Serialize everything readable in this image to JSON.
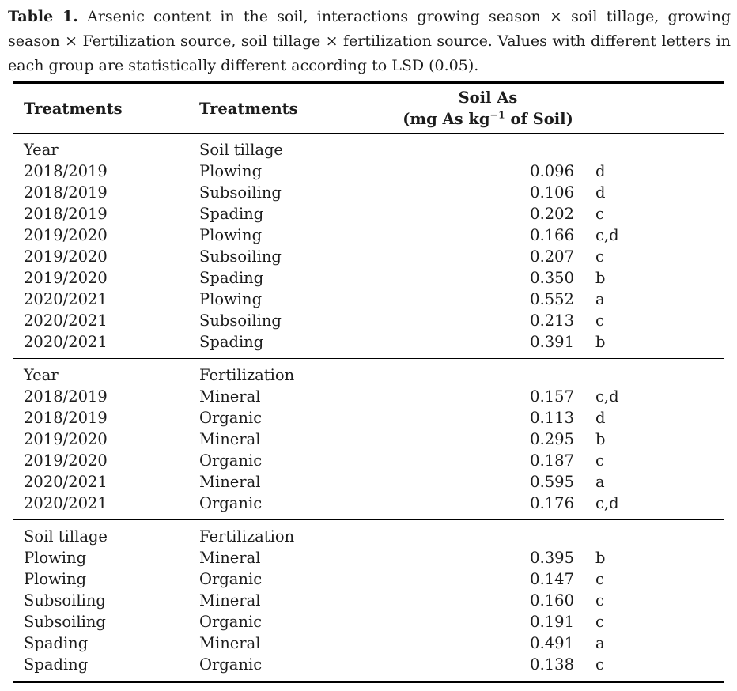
{
  "caption": {
    "label": "Table 1.",
    "text": "Arsenic content in the soil, interactions growing season × soil tillage, growing season × Fertilization source, soil tillage × fertilization source. Values with different letters in each group are statistically different according to LSD (0.05)."
  },
  "table": {
    "columns": [
      "Treatments",
      "Treatments"
    ],
    "value_header": {
      "title": "Soil As",
      "unit_prefix": "(mg As kg",
      "unit_exponent": "−1",
      "unit_suffix": " of Soil)"
    },
    "sections": [
      {
        "group1": "Year",
        "group2": "Soil tillage",
        "rows": [
          {
            "c1": "2018/2019",
            "c2": "Plowing",
            "value": "0.096",
            "letter": "d"
          },
          {
            "c1": "2018/2019",
            "c2": "Subsoiling",
            "value": "0.106",
            "letter": "d"
          },
          {
            "c1": "2018/2019",
            "c2": "Spading",
            "value": "0.202",
            "letter": "c"
          },
          {
            "c1": "2019/2020",
            "c2": "Plowing",
            "value": "0.166",
            "letter": "c,d"
          },
          {
            "c1": "2019/2020",
            "c2": "Subsoiling",
            "value": "0.207",
            "letter": "c"
          },
          {
            "c1": "2019/2020",
            "c2": "Spading",
            "value": "0.350",
            "letter": "b"
          },
          {
            "c1": "2020/2021",
            "c2": "Plowing",
            "value": "0.552",
            "letter": "a"
          },
          {
            "c1": "2020/2021",
            "c2": "Subsoiling",
            "value": "0.213",
            "letter": "c"
          },
          {
            "c1": "2020/2021",
            "c2": "Spading",
            "value": "0.391",
            "letter": "b"
          }
        ]
      },
      {
        "group1": "Year",
        "group2": "Fertilization",
        "rows": [
          {
            "c1": "2018/2019",
            "c2": "Mineral",
            "value": "0.157",
            "letter": "c,d"
          },
          {
            "c1": "2018/2019",
            "c2": "Organic",
            "value": "0.113",
            "letter": "d"
          },
          {
            "c1": "2019/2020",
            "c2": "Mineral",
            "value": "0.295",
            "letter": "b"
          },
          {
            "c1": "2019/2020",
            "c2": "Organic",
            "value": "0.187",
            "letter": "c"
          },
          {
            "c1": "2020/2021",
            "c2": "Mineral",
            "value": "0.595",
            "letter": "a"
          },
          {
            "c1": "2020/2021",
            "c2": "Organic",
            "value": "0.176",
            "letter": "c,d"
          }
        ]
      },
      {
        "group1": "Soil tillage",
        "group2": "Fertilization",
        "rows": [
          {
            "c1": "Plowing",
            "c2": "Mineral",
            "value": "0.395",
            "letter": "b"
          },
          {
            "c1": "Plowing",
            "c2": "Organic",
            "value": "0.147",
            "letter": "c"
          },
          {
            "c1": "Subsoiling",
            "c2": "Mineral",
            "value": "0.160",
            "letter": "c"
          },
          {
            "c1": "Subsoiling",
            "c2": "Organic",
            "value": "0.191",
            "letter": "c"
          },
          {
            "c1": "Spading",
            "c2": "Mineral",
            "value": "0.491",
            "letter": "a"
          },
          {
            "c1": "Spading",
            "c2": "Organic",
            "value": "0.138",
            "letter": "c"
          }
        ]
      }
    ]
  },
  "colors": {
    "background": "#ffffff",
    "text": "#1c1c1c",
    "rule": "#000000"
  }
}
